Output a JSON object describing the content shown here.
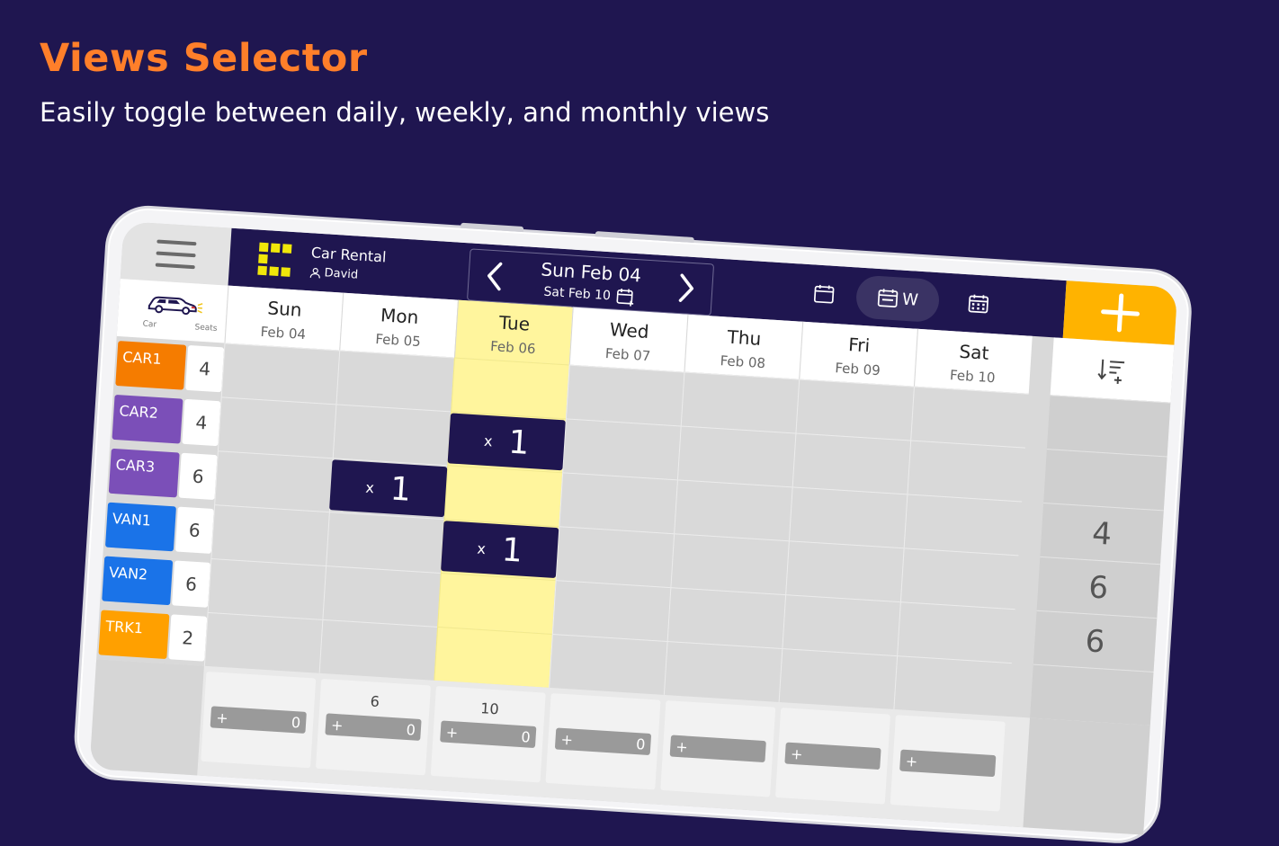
{
  "promo": {
    "title": "Views Selector",
    "subtitle": "Easily toggle between daily, weekly, and monthly views"
  },
  "app": {
    "name": "Car Rental",
    "user": "David"
  },
  "date_nav": {
    "main": "Sun Feb 04",
    "sub": "Sat Feb 10"
  },
  "view_selector": {
    "week_label": "W",
    "active": "week"
  },
  "grid": {
    "corner": {
      "car_label": "Car",
      "seats_label": "Seats"
    },
    "days": [
      {
        "name": "Sun",
        "date": "Feb 04"
      },
      {
        "name": "Mon",
        "date": "Feb 05"
      },
      {
        "name": "Tue",
        "date": "Feb 06"
      },
      {
        "name": "Wed",
        "date": "Feb 07"
      },
      {
        "name": "Thu",
        "date": "Feb 08"
      },
      {
        "name": "Fri",
        "date": "Feb 09"
      },
      {
        "name": "Sat",
        "date": "Feb 10"
      }
    ],
    "today_index": 2,
    "vehicles": [
      {
        "name": "CAR1",
        "seats": "4",
        "color": "#f57c00"
      },
      {
        "name": "CAR2",
        "seats": "4",
        "color": "#7b4fb8"
      },
      {
        "name": "CAR3",
        "seats": "6",
        "color": "#7b4fb8"
      },
      {
        "name": "VAN1",
        "seats": "6",
        "color": "#1a73e8"
      },
      {
        "name": "VAN2",
        "seats": "6",
        "color": "#1a73e8"
      },
      {
        "name": "TRK1",
        "seats": "2",
        "color": "#ffa000"
      }
    ],
    "bookings": [
      {
        "vehicle_index": 1,
        "day_index": 2,
        "multiplier": "x",
        "count": "1"
      },
      {
        "vehicle_index": 2,
        "day_index": 1,
        "multiplier": "x",
        "count": "1"
      },
      {
        "vehicle_index": 3,
        "day_index": 2,
        "multiplier": "x",
        "count": "1"
      }
    ],
    "side_values": [
      "",
      "",
      "4",
      "6",
      "6",
      ""
    ],
    "footer": [
      {
        "total": "",
        "value": "0"
      },
      {
        "total": "6",
        "value": "0"
      },
      {
        "total": "10",
        "value": "0"
      },
      {
        "total": "",
        "value": "0"
      },
      {
        "total": "",
        "value": ""
      },
      {
        "total": "",
        "value": ""
      },
      {
        "total": "",
        "value": ""
      }
    ]
  },
  "colors": {
    "background": "#1f1650",
    "title": "#ff7f2a",
    "accent": "#ffb300",
    "today_highlight": "#fff59d"
  },
  "icons": {
    "menu": "hamburger-icon",
    "logo": "app-logo-icon",
    "user": "user-icon",
    "prev": "chevron-left-icon",
    "next": "chevron-right-icon",
    "calendar_add": "calendar-add-icon",
    "day_view": "calendar-day-icon",
    "week_view": "calendar-week-icon",
    "month_view": "calendar-month-icon",
    "add": "plus-icon",
    "sort": "sort-icon",
    "car": "car-icon"
  }
}
